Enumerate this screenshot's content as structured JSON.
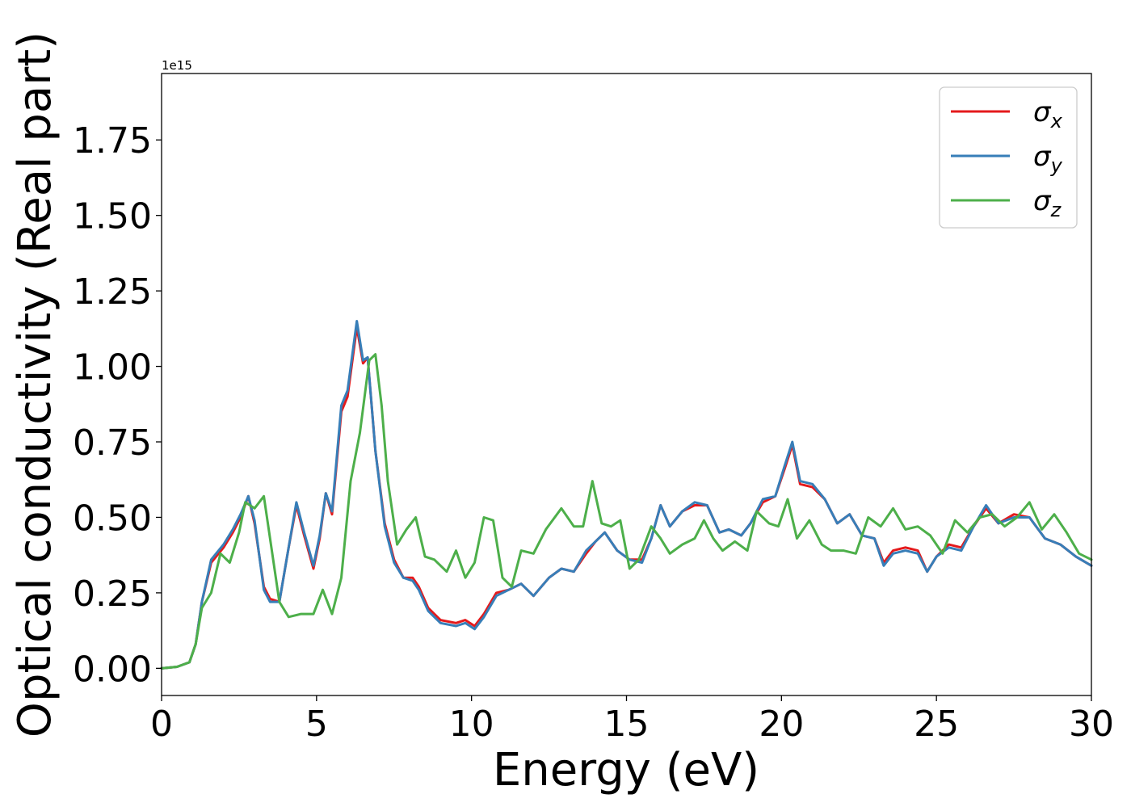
{
  "chart_data": {
    "type": "line",
    "xlabel": "Energy (eV)",
    "ylabel": "Optical conductivity (Real part)",
    "y_offset_text": "1e15",
    "xlim": [
      0,
      30
    ],
    "ylim": [
      -0.09,
      1.97
    ],
    "x_ticks": [
      0,
      5,
      10,
      15,
      20,
      25,
      30
    ],
    "x_tick_labels": [
      "0",
      "5",
      "10",
      "15",
      "20",
      "25",
      "30"
    ],
    "y_ticks": [
      0.0,
      0.25,
      0.5,
      0.75,
      1.0,
      1.25,
      1.5,
      1.75
    ],
    "y_tick_labels": [
      "0.00",
      "0.25",
      "0.50",
      "0.75",
      "1.00",
      "1.25",
      "1.50",
      "1.75"
    ],
    "grid": false,
    "legend_position": "top-right",
    "series": [
      {
        "name": "σ",
        "subscript": "x",
        "color": "#e41a1c",
        "x": [
          0,
          0.5,
          0.9,
          1.1,
          1.3,
          1.6,
          2.0,
          2.3,
          2.55,
          2.8,
          3.0,
          3.3,
          3.5,
          3.8,
          4.1,
          4.35,
          4.6,
          4.9,
          5.1,
          5.3,
          5.5,
          5.8,
          6.0,
          6.3,
          6.5,
          6.65,
          6.9,
          7.2,
          7.5,
          7.8,
          8.1,
          8.3,
          8.6,
          9.0,
          9.5,
          9.8,
          10.1,
          10.4,
          10.8,
          11.2,
          11.6,
          12.0,
          12.5,
          12.9,
          13.3,
          13.7,
          14.0,
          14.3,
          14.7,
          15.1,
          15.5,
          15.8,
          16.1,
          16.4,
          16.8,
          17.2,
          17.6,
          18.0,
          18.3,
          18.7,
          19.0,
          19.4,
          19.8,
          20.1,
          20.35,
          20.6,
          21.0,
          21.4,
          21.8,
          22.2,
          22.6,
          23.0,
          23.3,
          23.6,
          24.0,
          24.4,
          24.7,
          25.0,
          25.4,
          25.8,
          26.2,
          26.6,
          27.0,
          27.5,
          28.0,
          28.5,
          29.0,
          29.5,
          30.0
        ],
        "values": [
          0.0,
          0.005,
          0.02,
          0.08,
          0.22,
          0.35,
          0.4,
          0.45,
          0.5,
          0.57,
          0.48,
          0.27,
          0.23,
          0.22,
          0.4,
          0.54,
          0.44,
          0.33,
          0.43,
          0.58,
          0.51,
          0.85,
          0.9,
          1.13,
          1.01,
          1.03,
          0.72,
          0.48,
          0.36,
          0.3,
          0.3,
          0.27,
          0.2,
          0.16,
          0.15,
          0.16,
          0.14,
          0.18,
          0.25,
          0.26,
          0.28,
          0.24,
          0.3,
          0.33,
          0.32,
          0.38,
          0.42,
          0.45,
          0.39,
          0.36,
          0.36,
          0.43,
          0.54,
          0.47,
          0.52,
          0.54,
          0.54,
          0.45,
          0.46,
          0.44,
          0.48,
          0.55,
          0.57,
          0.66,
          0.74,
          0.61,
          0.6,
          0.56,
          0.48,
          0.51,
          0.44,
          0.43,
          0.35,
          0.39,
          0.4,
          0.39,
          0.32,
          0.37,
          0.41,
          0.4,
          0.47,
          0.53,
          0.48,
          0.51,
          0.5,
          0.43,
          0.41,
          0.37,
          0.34
        ]
      },
      {
        "name": "σ",
        "subscript": "y",
        "color": "#377eb8",
        "x": [
          0,
          0.5,
          0.9,
          1.1,
          1.3,
          1.6,
          2.0,
          2.3,
          2.55,
          2.8,
          3.0,
          3.3,
          3.5,
          3.8,
          4.1,
          4.35,
          4.6,
          4.9,
          5.1,
          5.3,
          5.5,
          5.8,
          6.0,
          6.3,
          6.5,
          6.65,
          6.9,
          7.2,
          7.5,
          7.8,
          8.1,
          8.3,
          8.6,
          9.0,
          9.5,
          9.8,
          10.1,
          10.4,
          10.8,
          11.2,
          11.6,
          12.0,
          12.5,
          12.9,
          13.3,
          13.7,
          14.0,
          14.3,
          14.7,
          15.1,
          15.5,
          15.8,
          16.1,
          16.4,
          16.8,
          17.2,
          17.6,
          18.0,
          18.3,
          18.7,
          19.0,
          19.4,
          19.8,
          20.1,
          20.35,
          20.6,
          21.0,
          21.4,
          21.8,
          22.2,
          22.6,
          23.0,
          23.3,
          23.6,
          24.0,
          24.4,
          24.7,
          25.0,
          25.4,
          25.8,
          26.2,
          26.6,
          27.0,
          27.5,
          28.0,
          28.5,
          29.0,
          29.5,
          30.0
        ],
        "values": [
          0.0,
          0.005,
          0.02,
          0.08,
          0.22,
          0.36,
          0.41,
          0.46,
          0.51,
          0.57,
          0.49,
          0.26,
          0.22,
          0.22,
          0.4,
          0.55,
          0.45,
          0.34,
          0.44,
          0.58,
          0.52,
          0.87,
          0.92,
          1.15,
          1.02,
          1.03,
          0.72,
          0.47,
          0.35,
          0.3,
          0.29,
          0.26,
          0.19,
          0.15,
          0.14,
          0.15,
          0.13,
          0.17,
          0.24,
          0.26,
          0.28,
          0.24,
          0.3,
          0.33,
          0.32,
          0.39,
          0.42,
          0.45,
          0.39,
          0.36,
          0.35,
          0.43,
          0.54,
          0.47,
          0.52,
          0.55,
          0.54,
          0.45,
          0.46,
          0.44,
          0.48,
          0.56,
          0.57,
          0.67,
          0.75,
          0.62,
          0.61,
          0.56,
          0.48,
          0.51,
          0.44,
          0.43,
          0.34,
          0.38,
          0.39,
          0.38,
          0.32,
          0.37,
          0.4,
          0.39,
          0.47,
          0.54,
          0.48,
          0.5,
          0.5,
          0.43,
          0.41,
          0.37,
          0.34
        ]
      },
      {
        "name": "σ",
        "subscript": "z",
        "color": "#4daf4a",
        "x": [
          0,
          0.5,
          0.9,
          1.1,
          1.3,
          1.6,
          1.9,
          2.2,
          2.5,
          2.7,
          3.0,
          3.3,
          3.5,
          3.8,
          4.1,
          4.5,
          4.9,
          5.2,
          5.5,
          5.8,
          6.1,
          6.4,
          6.7,
          6.9,
          7.1,
          7.3,
          7.6,
          7.9,
          8.2,
          8.5,
          8.8,
          9.2,
          9.5,
          9.8,
          10.1,
          10.4,
          10.7,
          11.0,
          11.3,
          11.6,
          12.0,
          12.4,
          12.9,
          13.3,
          13.6,
          13.9,
          14.2,
          14.5,
          14.8,
          15.1,
          15.4,
          15.8,
          16.1,
          16.4,
          16.8,
          17.2,
          17.5,
          17.8,
          18.1,
          18.5,
          18.9,
          19.2,
          19.6,
          19.9,
          20.2,
          20.5,
          20.9,
          21.3,
          21.6,
          22.0,
          22.4,
          22.8,
          23.2,
          23.6,
          24.0,
          24.4,
          24.8,
          25.2,
          25.6,
          26.0,
          26.4,
          26.8,
          27.2,
          27.6,
          28.0,
          28.4,
          28.8,
          29.2,
          29.6,
          30.0
        ],
        "values": [
          0.0,
          0.005,
          0.02,
          0.08,
          0.2,
          0.25,
          0.38,
          0.35,
          0.45,
          0.55,
          0.53,
          0.57,
          0.43,
          0.22,
          0.17,
          0.18,
          0.18,
          0.26,
          0.18,
          0.3,
          0.62,
          0.78,
          1.02,
          1.04,
          0.87,
          0.62,
          0.41,
          0.46,
          0.5,
          0.37,
          0.36,
          0.32,
          0.39,
          0.3,
          0.35,
          0.5,
          0.49,
          0.3,
          0.27,
          0.39,
          0.38,
          0.46,
          0.53,
          0.47,
          0.47,
          0.62,
          0.48,
          0.47,
          0.49,
          0.33,
          0.36,
          0.47,
          0.43,
          0.38,
          0.41,
          0.43,
          0.49,
          0.43,
          0.39,
          0.42,
          0.39,
          0.52,
          0.48,
          0.47,
          0.56,
          0.43,
          0.49,
          0.41,
          0.39,
          0.39,
          0.38,
          0.5,
          0.47,
          0.53,
          0.46,
          0.47,
          0.44,
          0.38,
          0.49,
          0.45,
          0.5,
          0.51,
          0.47,
          0.5,
          0.55,
          0.46,
          0.51,
          0.45,
          0.38,
          0.36
        ]
      }
    ]
  }
}
